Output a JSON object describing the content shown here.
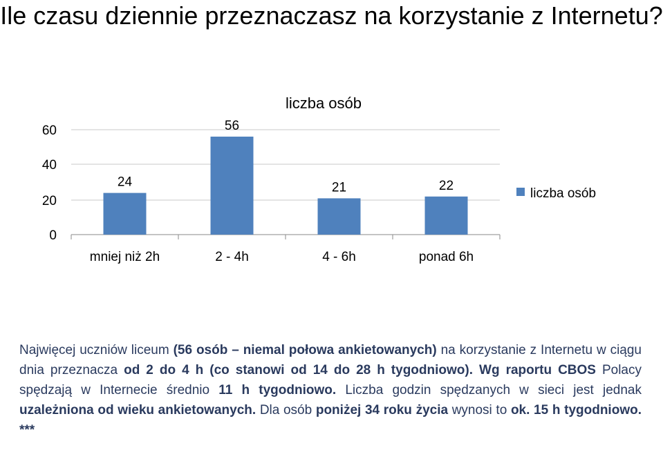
{
  "title": "Ile czasu dziennie przeznaczasz na korzystanie z Internetu?",
  "chart_data": {
    "type": "bar",
    "title": "liczba osób",
    "categories": [
      "mniej niż 2h",
      "2 - 4h",
      "4 - 6h",
      "ponad 6h"
    ],
    "series": [
      {
        "name": "liczba osób",
        "values": [
          24,
          56,
          21,
          22
        ]
      }
    ],
    "yticks": [
      0,
      20,
      40,
      60
    ],
    "ylim": [
      0,
      60
    ],
    "legend": "right",
    "grid": true,
    "colors": {
      "bar": "#4f81bd",
      "grid": "#c8c8c8",
      "axis": "#888888"
    }
  },
  "summary": {
    "s1": "Najwięcej uczniów liceum ",
    "s2": "(56 osób – niemal połowa ankietowanych)",
    "s3": " na korzystanie z Internetu w ciągu dnia przeznacza ",
    "s4": "od 2 do 4 h (co stanowi od 14 do 28 h tygodniowo).",
    "s5": " ",
    "s6": "Wg raportu CBOS",
    "s7": " Polacy spędzają w Internecie średnio ",
    "s8": "11 h tygodniowo.",
    "s9": " Liczba godzin spędzanych w sieci jest jednak ",
    "s10": "uzależniona od wieku ankietowanych.",
    "s11": " Dla osób ",
    "s12": "poniżej 34 roku życia",
    "s13": " wynosi to ",
    "s14": "ok. 15 h tygodniowo. ***"
  }
}
